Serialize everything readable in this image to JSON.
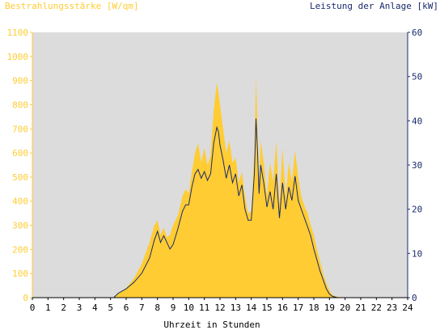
{
  "chart_data": {
    "type": "area",
    "title_left": "Bestrahlungsstärke [W/qm]",
    "title_right": "Leistung der Anlage [kW]",
    "xlabel": "Uhrzeit in Stunden",
    "x_ticks": [
      "0",
      "1",
      "2",
      "3",
      "4",
      "5",
      "6",
      "7",
      "8",
      "9",
      "10",
      "11",
      "12",
      "13",
      "14",
      "15",
      "16",
      "17",
      "18",
      "19",
      "20",
      "21",
      "22",
      "23",
      "24"
    ],
    "xlim": [
      0,
      24
    ],
    "y_left_ticks": [
      "0",
      "100",
      "200",
      "300",
      "400",
      "500",
      "600",
      "700",
      "800",
      "900",
      "1000",
      "1100"
    ],
    "y_left_lim": [
      0,
      1100
    ],
    "y_right_ticks": [
      "0",
      "10",
      "20",
      "30",
      "40",
      "50",
      "60"
    ],
    "y_right_lim": [
      0,
      60
    ],
    "colors": {
      "irradiance_fill": "#ffcc33",
      "power_line": "#1a2a6c",
      "plot_background": "#dcdcdc",
      "left_axis_text": "#ffcc33",
      "right_axis_text": "#1a2a6c"
    },
    "series": [
      {
        "axis": "left",
        "x": [
          0,
          5.2,
          5.5,
          6,
          6.5,
          7,
          7.5,
          7.8,
          8,
          8.2,
          8.4,
          8.6,
          8.8,
          9,
          9.3,
          9.6,
          9.8,
          10,
          10.2,
          10.4,
          10.6,
          10.8,
          11,
          11.2,
          11.4,
          11.6,
          11.8,
          11.9,
          12,
          12.2,
          12.4,
          12.6,
          12.8,
          13,
          13.2,
          13.4,
          13.6,
          13.8,
          14,
          14.2,
          14.3,
          14.4,
          14.5,
          14.6,
          14.8,
          15,
          15.2,
          15.4,
          15.6,
          15.8,
          16,
          16.2,
          16.4,
          16.6,
          16.8,
          17,
          17.2,
          17.4,
          17.6,
          17.8,
          18,
          18.2,
          18.4,
          18.6,
          18.8,
          19,
          19.2,
          19.5,
          19.8,
          24
        ],
        "y": [
          0,
          0,
          20,
          40,
          80,
          140,
          230,
          300,
          320,
          260,
          290,
          250,
          260,
          300,
          340,
          420,
          450,
          430,
          520,
          600,
          640,
          560,
          620,
          550,
          590,
          780,
          890,
          850,
          800,
          700,
          600,
          650,
          560,
          580,
          480,
          520,
          420,
          350,
          360,
          600,
          920,
          700,
          480,
          650,
          560,
          420,
          560,
          480,
          650,
          380,
          620,
          420,
          560,
          480,
          610,
          500,
          420,
          380,
          350,
          300,
          260,
          200,
          150,
          100,
          60,
          30,
          10,
          4,
          0,
          0
        ]
      },
      {
        "axis": "right",
        "x": [
          0,
          5.2,
          5.5,
          6,
          6.5,
          7,
          7.5,
          7.8,
          8,
          8.2,
          8.4,
          8.6,
          8.8,
          9,
          9.3,
          9.6,
          9.8,
          10,
          10.2,
          10.4,
          10.6,
          10.8,
          11,
          11.2,
          11.4,
          11.6,
          11.8,
          11.9,
          12,
          12.2,
          12.4,
          12.6,
          12.8,
          13,
          13.2,
          13.4,
          13.6,
          13.8,
          14,
          14.2,
          14.3,
          14.4,
          14.5,
          14.6,
          14.8,
          15,
          15.2,
          15.4,
          15.6,
          15.8,
          16,
          16.2,
          16.4,
          16.6,
          16.8,
          17,
          17.2,
          17.4,
          17.6,
          17.8,
          18,
          18.2,
          18.4,
          18.6,
          18.8,
          19,
          19.2,
          19.5,
          19.8,
          24
        ],
        "y": [
          0,
          0,
          1,
          2,
          3.5,
          5.5,
          9,
          13,
          15,
          12.5,
          14,
          12.5,
          11,
          12,
          15.5,
          19.5,
          21,
          21,
          25,
          28,
          29,
          27,
          28.5,
          26.5,
          28,
          35,
          38.5,
          37.5,
          34.5,
          31,
          27,
          30,
          26,
          28,
          23,
          25.5,
          20,
          17.5,
          17.5,
          28,
          40.5,
          33,
          23.5,
          30,
          26,
          20.5,
          24,
          20,
          28,
          18,
          26,
          20,
          25,
          22,
          27.5,
          22,
          20,
          18,
          16,
          14,
          11,
          8.5,
          6,
          4,
          2,
          0.8,
          0.3,
          0,
          0,
          0
        ]
      }
    ]
  }
}
